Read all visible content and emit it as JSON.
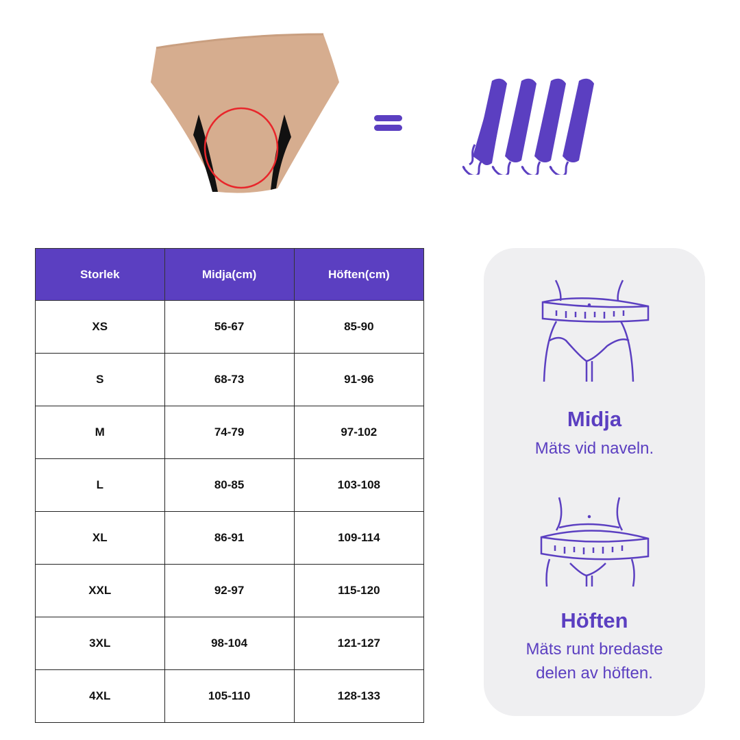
{
  "hero": {
    "product": "period-underwear-image",
    "equals": "equals-icon",
    "tampons": [
      "tampon-icon",
      "tampon-icon",
      "tampon-icon",
      "tampon-icon"
    ],
    "accent_color": "#5b3fc1",
    "highlight_color": "#e8262b"
  },
  "table": {
    "headers": [
      "Storlek",
      "Midja(cm)",
      "Höften(cm)"
    ],
    "rows": [
      [
        "XS",
        "56-67",
        "85-90"
      ],
      [
        "S",
        "68-73",
        "91-96"
      ],
      [
        "M",
        "74-79",
        "97-102"
      ],
      [
        "L",
        "80-85",
        "103-108"
      ],
      [
        "XL",
        "86-91",
        "109-114"
      ],
      [
        "XXL",
        "92-97",
        "115-120"
      ],
      [
        "3XL",
        "98-104",
        "121-127"
      ],
      [
        "4XL",
        "105-110",
        "128-133"
      ]
    ]
  },
  "guide": {
    "waist": {
      "title": "Midja",
      "desc": "Mäts vid naveln."
    },
    "hip": {
      "title": "Höften",
      "desc_line1": "Mäts runt bredaste",
      "desc_line2": "delen av höften."
    }
  }
}
